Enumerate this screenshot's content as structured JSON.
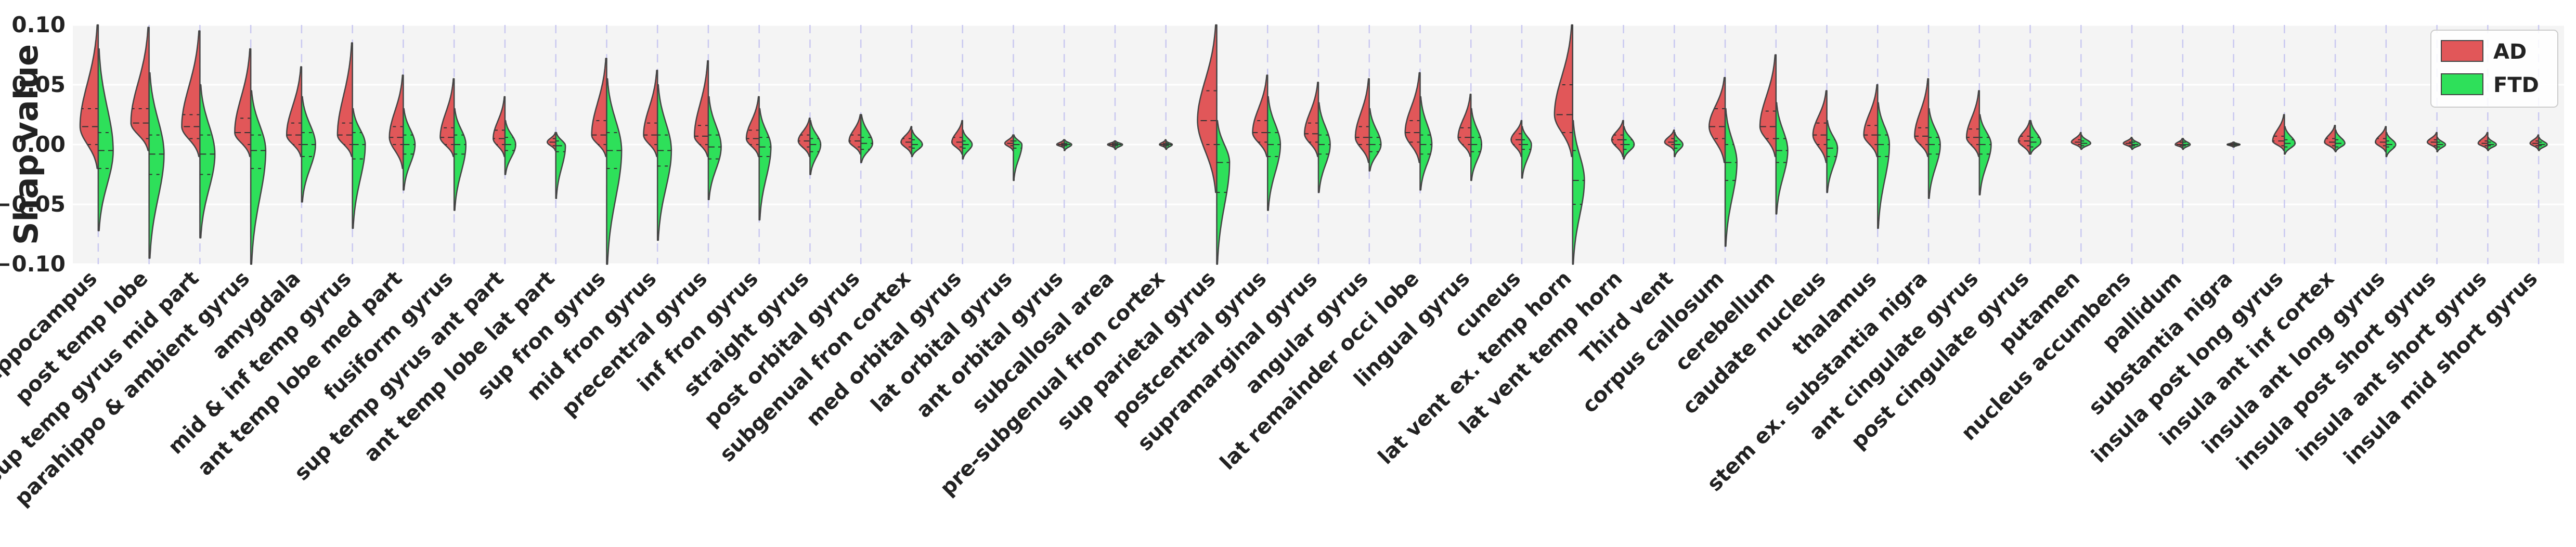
{
  "chart_data": {
    "type": "violin",
    "ylabel": "Shap value",
    "ylim": [
      -0.1,
      0.1
    ],
    "yticks": [
      0.1,
      0.05,
      0.0,
      -0.05,
      -0.1
    ],
    "ytick_labels": [
      "0.10",
      "0.05",
      "0.00",
      "−0.05",
      "−0.10"
    ],
    "grid": true,
    "legend_position": "upper right",
    "series": [
      {
        "name": "AD",
        "color": "#e15759"
      },
      {
        "name": "FTD",
        "color": "#2ee05a"
      }
    ],
    "categories": [
      "hippocampus",
      "post temp lobe",
      "sup temp gyrus mid part",
      "parahippo & ambient gyrus",
      "amygdala",
      "mid & inf temp gyrus",
      "ant temp lobe med part",
      "fusiform gyrus",
      "sup temp gyrus ant part",
      "ant temp lobe lat part",
      "sup fron gyrus",
      "mid fron gyrus",
      "precentral gyrus",
      "inf fron gyrus",
      "straight gyrus",
      "post orbital gyrus",
      "subgenual fron cortex",
      "med orbital gyrus",
      "lat orbital gyrus",
      "ant orbital gyrus",
      "subcallosal area",
      "pre-subgenual fron cortex",
      "sup parietal gyrus",
      "postcentral gyrus",
      "supramarginal gyrus",
      "angular gyrus",
      "lat remainder occi lobe",
      "lingual gyrus",
      "cuneus",
      "lat vent ex. temp horn",
      "lat vent temp horn",
      "Third vent",
      "corpus callosum",
      "cerebellum",
      "caudate nucleus",
      "thalamus",
      "stem ex. substantia nigra",
      "ant cingulate gyrus",
      "post cingulate gyrus",
      "putamen",
      "nucleus accumbens",
      "pallidum",
      "substantia nigra",
      "insula post long gyrus",
      "insula ant inf cortex",
      "insula ant long gyrus",
      "insula post short gyrus",
      "insula ant short gyrus",
      "insula mid short gyrus"
    ],
    "violins": {
      "AD": [
        {
          "min": -0.02,
          "max": 0.1,
          "q1": 0.0,
          "median": 0.015,
          "q3": 0.03,
          "width": 0.85
        },
        {
          "min": -0.005,
          "max": 0.098,
          "q1": 0.005,
          "median": 0.018,
          "q3": 0.03,
          "width": 0.85
        },
        {
          "min": -0.01,
          "max": 0.095,
          "q1": 0.005,
          "median": 0.015,
          "q3": 0.025,
          "width": 0.85
        },
        {
          "min": -0.01,
          "max": 0.08,
          "q1": 0.0,
          "median": 0.01,
          "q3": 0.022,
          "width": 0.75
        },
        {
          "min": -0.01,
          "max": 0.065,
          "q1": 0.0,
          "median": 0.008,
          "q3": 0.018,
          "width": 0.7
        },
        {
          "min": -0.01,
          "max": 0.085,
          "q1": 0.0,
          "median": 0.008,
          "q3": 0.018,
          "width": 0.7
        },
        {
          "min": -0.02,
          "max": 0.058,
          "q1": 0.0,
          "median": 0.006,
          "q3": 0.015,
          "width": 0.65
        },
        {
          "min": -0.01,
          "max": 0.055,
          "q1": 0.0,
          "median": 0.006,
          "q3": 0.014,
          "width": 0.65
        },
        {
          "min": -0.01,
          "max": 0.04,
          "q1": 0.0,
          "median": 0.005,
          "q3": 0.012,
          "width": 0.55
        },
        {
          "min": -0.005,
          "max": 0.01,
          "q1": -0.001,
          "median": 0.002,
          "q3": 0.005,
          "width": 0.4
        },
        {
          "min": -0.01,
          "max": 0.072,
          "q1": 0.0,
          "median": 0.008,
          "q3": 0.02,
          "width": 0.7
        },
        {
          "min": -0.01,
          "max": 0.062,
          "q1": 0.0,
          "median": 0.008,
          "q3": 0.018,
          "width": 0.65
        },
        {
          "min": -0.01,
          "max": 0.07,
          "q1": 0.0,
          "median": 0.007,
          "q3": 0.016,
          "width": 0.65
        },
        {
          "min": -0.01,
          "max": 0.04,
          "q1": 0.0,
          "median": 0.005,
          "q3": 0.012,
          "width": 0.6
        },
        {
          "min": -0.01,
          "max": 0.022,
          "q1": -0.002,
          "median": 0.003,
          "q3": 0.008,
          "width": 0.55
        },
        {
          "min": -0.008,
          "max": 0.025,
          "q1": -0.002,
          "median": 0.003,
          "q3": 0.008,
          "width": 0.55
        },
        {
          "min": -0.008,
          "max": 0.015,
          "q1": -0.002,
          "median": 0.002,
          "q3": 0.005,
          "width": 0.5
        },
        {
          "min": -0.008,
          "max": 0.02,
          "q1": -0.002,
          "median": 0.002,
          "q3": 0.006,
          "width": 0.5
        },
        {
          "min": -0.005,
          "max": 0.008,
          "q1": -0.001,
          "median": 0.001,
          "q3": 0.003,
          "width": 0.4
        },
        {
          "min": -0.003,
          "max": 0.004,
          "q1": -0.001,
          "median": 0.0,
          "q3": 0.001,
          "width": 0.35
        },
        {
          "min": -0.003,
          "max": 0.003,
          "q1": -0.001,
          "median": 0.0,
          "q3": 0.001,
          "width": 0.35
        },
        {
          "min": -0.003,
          "max": 0.004,
          "q1": -0.001,
          "median": 0.0,
          "q3": 0.001,
          "width": 0.3
        },
        {
          "min": -0.04,
          "max": 0.1,
          "q1": 0.0,
          "median": 0.02,
          "q3": 0.045,
          "width": 0.9
        },
        {
          "min": -0.01,
          "max": 0.058,
          "q1": 0.002,
          "median": 0.01,
          "q3": 0.02,
          "width": 0.7
        },
        {
          "min": -0.01,
          "max": 0.052,
          "q1": 0.002,
          "median": 0.009,
          "q3": 0.018,
          "width": 0.65
        },
        {
          "min": -0.015,
          "max": 0.055,
          "q1": 0.0,
          "median": 0.006,
          "q3": 0.015,
          "width": 0.65
        },
        {
          "min": -0.015,
          "max": 0.06,
          "q1": 0.002,
          "median": 0.01,
          "q3": 0.02,
          "width": 0.7
        },
        {
          "min": -0.01,
          "max": 0.042,
          "q1": 0.0,
          "median": 0.006,
          "q3": 0.014,
          "width": 0.6
        },
        {
          "min": -0.01,
          "max": 0.02,
          "q1": 0.0,
          "median": 0.004,
          "q3": 0.009,
          "width": 0.5
        },
        {
          "min": -0.01,
          "max": 0.1,
          "q1": 0.01,
          "median": 0.025,
          "q3": 0.05,
          "width": 0.85
        },
        {
          "min": -0.01,
          "max": 0.02,
          "q1": 0.0,
          "median": 0.004,
          "q3": 0.008,
          "width": 0.55
        },
        {
          "min": -0.005,
          "max": 0.012,
          "q1": 0.0,
          "median": 0.002,
          "q3": 0.005,
          "width": 0.45
        },
        {
          "min": -0.015,
          "max": 0.056,
          "q1": 0.005,
          "median": 0.015,
          "q3": 0.03,
          "width": 0.75
        },
        {
          "min": -0.01,
          "max": 0.075,
          "q1": 0.005,
          "median": 0.015,
          "q3": 0.028,
          "width": 0.75
        },
        {
          "min": -0.015,
          "max": 0.045,
          "q1": 0.0,
          "median": 0.008,
          "q3": 0.018,
          "width": 0.65
        },
        {
          "min": -0.01,
          "max": 0.05,
          "q1": 0.0,
          "median": 0.008,
          "q3": 0.016,
          "width": 0.65
        },
        {
          "min": -0.01,
          "max": 0.055,
          "q1": 0.0,
          "median": 0.007,
          "q3": 0.014,
          "width": 0.65
        },
        {
          "min": -0.01,
          "max": 0.045,
          "q1": 0.0,
          "median": 0.006,
          "q3": 0.013,
          "width": 0.6
        },
        {
          "min": -0.008,
          "max": 0.02,
          "q1": -0.001,
          "median": 0.003,
          "q3": 0.007,
          "width": 0.55
        },
        {
          "min": -0.003,
          "max": 0.01,
          "q1": 0.0,
          "median": 0.002,
          "q3": 0.004,
          "width": 0.45
        },
        {
          "min": -0.003,
          "max": 0.006,
          "q1": -0.001,
          "median": 0.001,
          "q3": 0.002,
          "width": 0.4
        },
        {
          "min": -0.003,
          "max": 0.005,
          "q1": -0.001,
          "median": 0.0,
          "q3": 0.002,
          "width": 0.35
        },
        {
          "min": -0.002,
          "max": 0.002,
          "q1": -0.001,
          "median": 0.0,
          "q3": 0.001,
          "width": 0.3
        },
        {
          "min": -0.005,
          "max": 0.025,
          "q1": -0.001,
          "median": 0.003,
          "q3": 0.007,
          "width": 0.55
        },
        {
          "min": -0.005,
          "max": 0.016,
          "q1": -0.001,
          "median": 0.002,
          "q3": 0.005,
          "width": 0.5
        },
        {
          "min": -0.006,
          "max": 0.015,
          "q1": -0.001,
          "median": 0.002,
          "q3": 0.005,
          "width": 0.5
        },
        {
          "min": -0.004,
          "max": 0.01,
          "q1": -0.001,
          "median": 0.002,
          "q3": 0.004,
          "width": 0.45
        },
        {
          "min": -0.004,
          "max": 0.01,
          "q1": -0.001,
          "median": 0.001,
          "q3": 0.003,
          "width": 0.45
        },
        {
          "min": -0.004,
          "max": 0.008,
          "q1": -0.001,
          "median": 0.001,
          "q3": 0.003,
          "width": 0.4
        }
      ],
      "FTD": [
        {
          "min": -0.072,
          "max": 0.08,
          "q1": -0.02,
          "median": -0.005,
          "q3": 0.01,
          "width": 0.7
        },
        {
          "min": -0.095,
          "max": 0.06,
          "q1": -0.025,
          "median": -0.008,
          "q3": 0.008,
          "width": 0.7
        },
        {
          "min": -0.078,
          "max": 0.05,
          "q1": -0.025,
          "median": -0.008,
          "q3": 0.008,
          "width": 0.7
        },
        {
          "min": -0.1,
          "max": 0.045,
          "q1": -0.02,
          "median": -0.005,
          "q3": 0.008,
          "width": 0.7
        },
        {
          "min": -0.048,
          "max": 0.04,
          "q1": -0.01,
          "median": 0.0,
          "q3": 0.01,
          "width": 0.65
        },
        {
          "min": -0.07,
          "max": 0.03,
          "q1": -0.012,
          "median": 0.0,
          "q3": 0.01,
          "width": 0.6
        },
        {
          "min": -0.038,
          "max": 0.03,
          "q1": -0.008,
          "median": 0.0,
          "q3": 0.008,
          "width": 0.55
        },
        {
          "min": -0.055,
          "max": 0.03,
          "q1": -0.008,
          "median": 0.0,
          "q3": 0.008,
          "width": 0.55
        },
        {
          "min": -0.025,
          "max": 0.02,
          "q1": -0.005,
          "median": 0.0,
          "q3": 0.006,
          "width": 0.5
        },
        {
          "min": -0.045,
          "max": 0.01,
          "q1": -0.006,
          "median": -0.001,
          "q3": 0.003,
          "width": 0.45
        },
        {
          "min": -0.1,
          "max": 0.055,
          "q1": -0.02,
          "median": -0.005,
          "q3": 0.01,
          "width": 0.7
        },
        {
          "min": -0.08,
          "max": 0.05,
          "q1": -0.018,
          "median": -0.005,
          "q3": 0.008,
          "width": 0.65
        },
        {
          "min": -0.046,
          "max": 0.04,
          "q1": -0.012,
          "median": -0.002,
          "q3": 0.008,
          "width": 0.6
        },
        {
          "min": -0.063,
          "max": 0.03,
          "q1": -0.01,
          "median": -0.002,
          "q3": 0.006,
          "width": 0.55
        },
        {
          "min": -0.025,
          "max": 0.02,
          "q1": -0.006,
          "median": 0.0,
          "q3": 0.005,
          "width": 0.5
        },
        {
          "min": -0.015,
          "max": 0.025,
          "q1": -0.004,
          "median": 0.001,
          "q3": 0.006,
          "width": 0.55
        },
        {
          "min": -0.01,
          "max": 0.012,
          "q1": -0.003,
          "median": 0.0,
          "q3": 0.004,
          "width": 0.5
        },
        {
          "min": -0.012,
          "max": 0.012,
          "q1": -0.003,
          "median": 0.0,
          "q3": 0.003,
          "width": 0.45
        },
        {
          "min": -0.03,
          "max": 0.008,
          "q1": -0.003,
          "median": 0.0,
          "q3": 0.003,
          "width": 0.4
        },
        {
          "min": -0.005,
          "max": 0.004,
          "q1": -0.001,
          "median": 0.0,
          "q3": 0.001,
          "width": 0.35
        },
        {
          "min": -0.004,
          "max": 0.003,
          "q1": -0.001,
          "median": 0.0,
          "q3": 0.001,
          "width": 0.35
        },
        {
          "min": -0.004,
          "max": 0.003,
          "q1": -0.001,
          "median": 0.0,
          "q3": 0.001,
          "width": 0.3
        },
        {
          "min": -0.1,
          "max": 0.02,
          "q1": -0.04,
          "median": -0.015,
          "q3": 0.0,
          "width": 0.6
        },
        {
          "min": -0.055,
          "max": 0.04,
          "q1": -0.01,
          "median": 0.0,
          "q3": 0.01,
          "width": 0.6
        },
        {
          "min": -0.04,
          "max": 0.035,
          "q1": -0.008,
          "median": 0.0,
          "q3": 0.008,
          "width": 0.55
        },
        {
          "min": -0.022,
          "max": 0.03,
          "q1": -0.006,
          "median": 0.0,
          "q3": 0.006,
          "width": 0.55
        },
        {
          "min": -0.038,
          "max": 0.04,
          "q1": -0.008,
          "median": 0.0,
          "q3": 0.008,
          "width": 0.55
        },
        {
          "min": -0.03,
          "max": 0.03,
          "q1": -0.006,
          "median": 0.0,
          "q3": 0.006,
          "width": 0.5
        },
        {
          "min": -0.028,
          "max": 0.015,
          "q1": -0.004,
          "median": 0.0,
          "q3": 0.004,
          "width": 0.45
        },
        {
          "min": -0.1,
          "max": 0.02,
          "q1": -0.05,
          "median": -0.03,
          "q3": -0.005,
          "width": 0.55
        },
        {
          "min": -0.012,
          "max": 0.015,
          "q1": -0.004,
          "median": 0.0,
          "q3": 0.004,
          "width": 0.5
        },
        {
          "min": -0.01,
          "max": 0.01,
          "q1": -0.003,
          "median": 0.0,
          "q3": 0.003,
          "width": 0.4
        },
        {
          "min": -0.085,
          "max": 0.03,
          "q1": -0.03,
          "median": -0.015,
          "q3": 0.0,
          "width": 0.55
        },
        {
          "min": -0.058,
          "max": 0.035,
          "q1": -0.015,
          "median": -0.005,
          "q3": 0.005,
          "width": 0.55
        },
        {
          "min": -0.04,
          "max": 0.02,
          "q1": -0.01,
          "median": -0.003,
          "q3": 0.004,
          "width": 0.5
        },
        {
          "min": -0.07,
          "max": 0.035,
          "q1": -0.01,
          "median": 0.0,
          "q3": 0.008,
          "width": 0.55
        },
        {
          "min": -0.045,
          "max": 0.03,
          "q1": -0.008,
          "median": 0.0,
          "q3": 0.006,
          "width": 0.55
        },
        {
          "min": -0.042,
          "max": 0.025,
          "q1": -0.008,
          "median": 0.0,
          "q3": 0.006,
          "width": 0.55
        },
        {
          "min": -0.008,
          "max": 0.02,
          "q1": -0.002,
          "median": 0.002,
          "q3": 0.006,
          "width": 0.5
        },
        {
          "min": -0.004,
          "max": 0.008,
          "q1": -0.001,
          "median": 0.001,
          "q3": 0.003,
          "width": 0.45
        },
        {
          "min": -0.004,
          "max": 0.005,
          "q1": -0.001,
          "median": 0.0,
          "q3": 0.002,
          "width": 0.4
        },
        {
          "min": -0.004,
          "max": 0.005,
          "q1": -0.001,
          "median": 0.0,
          "q3": 0.002,
          "width": 0.35
        },
        {
          "min": -0.002,
          "max": 0.002,
          "q1": -0.001,
          "median": 0.0,
          "q3": 0.001,
          "width": 0.3
        },
        {
          "min": -0.008,
          "max": 0.015,
          "q1": -0.002,
          "median": 0.001,
          "q3": 0.004,
          "width": 0.5
        },
        {
          "min": -0.006,
          "max": 0.012,
          "q1": -0.002,
          "median": 0.001,
          "q3": 0.004,
          "width": 0.45
        },
        {
          "min": -0.01,
          "max": 0.01,
          "q1": -0.002,
          "median": 0.0,
          "q3": 0.003,
          "width": 0.45
        },
        {
          "min": -0.006,
          "max": 0.006,
          "q1": -0.002,
          "median": 0.0,
          "q3": 0.002,
          "width": 0.4
        },
        {
          "min": -0.005,
          "max": 0.006,
          "q1": -0.001,
          "median": 0.0,
          "q3": 0.002,
          "width": 0.4
        },
        {
          "min": -0.005,
          "max": 0.006,
          "q1": -0.001,
          "median": 0.0,
          "q3": 0.002,
          "width": 0.4
        }
      ]
    }
  }
}
